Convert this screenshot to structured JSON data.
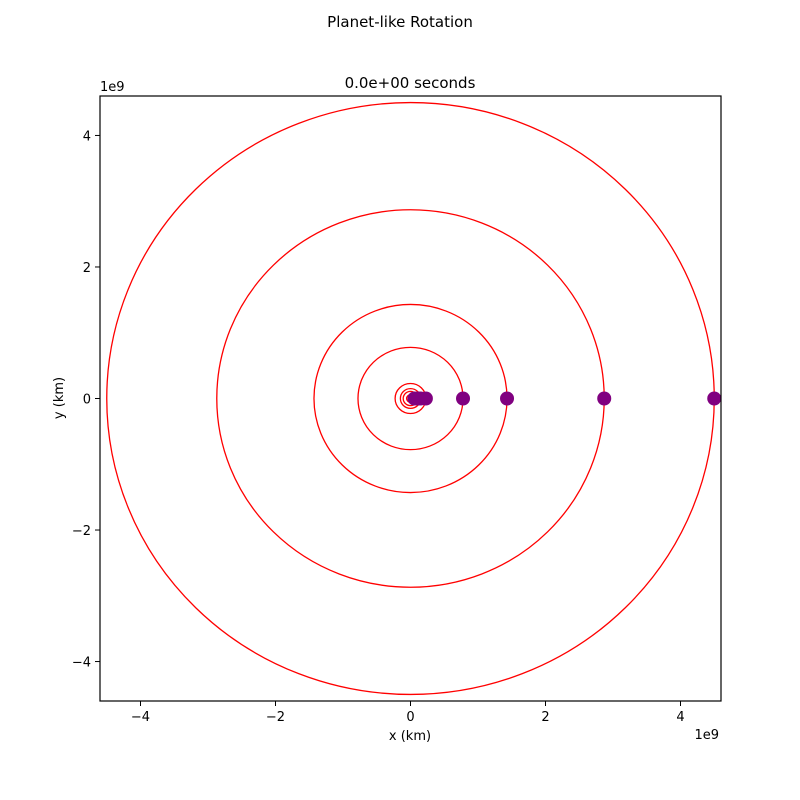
{
  "chart_data": {
    "type": "scatter",
    "suptitle": "Planet-like Rotation",
    "title": "0.0e+00 seconds",
    "xlabel": "x (km)",
    "ylabel": "y (km)",
    "x_offset_label": "1e9",
    "y_offset_label": "1e9",
    "xlim": [
      -4600000000.0,
      4600000000.0
    ],
    "ylim": [
      -4600000000.0,
      4600000000.0
    ],
    "xticks": [
      -4000000000.0,
      -2000000000.0,
      0,
      2000000000.0,
      4000000000.0
    ],
    "yticks": [
      -4000000000.0,
      -2000000000.0,
      0,
      2000000000.0,
      4000000000.0
    ],
    "xtick_labels": [
      "−4",
      "−2",
      "0",
      "2",
      "4"
    ],
    "ytick_labels": [
      "−4",
      "−2",
      "0",
      "2",
      "4"
    ],
    "grid": false,
    "orbit_color": "#ff0000",
    "planet_color": "#800080",
    "planets": [
      {
        "x": 58000000.0,
        "y": 0
      },
      {
        "x": 108000000.0,
        "y": 0
      },
      {
        "x": 150000000.0,
        "y": 0
      },
      {
        "x": 228000000.0,
        "y": 0
      },
      {
        "x": 778000000.0,
        "y": 0
      },
      {
        "x": 1430000000.0,
        "y": 0
      },
      {
        "x": 2870000000.0,
        "y": 0
      },
      {
        "x": 4500000000.0,
        "y": 0
      }
    ],
    "orbit_radii": [
      58000000.0,
      108000000.0,
      150000000.0,
      228000000.0,
      778000000.0,
      1430000000.0,
      2870000000.0,
      4500000000.0
    ]
  }
}
